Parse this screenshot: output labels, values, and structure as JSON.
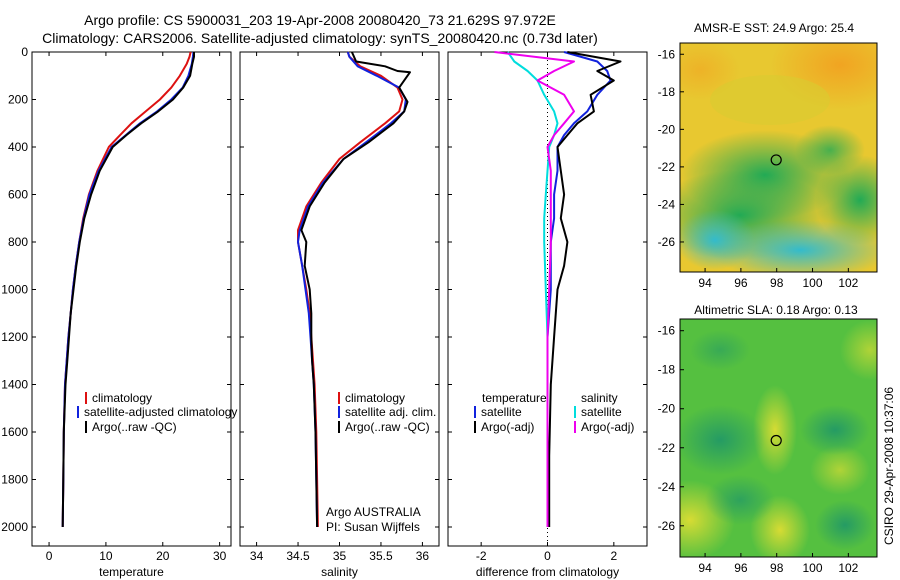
{
  "header": {
    "title_line1": "Argo profile: CS 5900031_203 19-Apr-2008 20080420_73 21.629S 97.972E",
    "title_line2": "Climatology: CARS2006. Satellite-adjusted climatology: synTS_20080420.nc (0.73d later)"
  },
  "side_note": "CSIRO 29-Apr-2008 10:37:06",
  "colors": {
    "climatology": "#dd1111",
    "satellite": "#1122dd",
    "argo": "#000000",
    "cyan": "#00dddd",
    "magenta": "#ee00ee",
    "marker": "#000000"
  },
  "chart_data": [
    {
      "type": "line",
      "id": "temperature",
      "xlabel": "temperature",
      "ylabel": "",
      "xlim": [
        -3,
        32
      ],
      "ylim": [
        2080,
        0
      ],
      "xticks": [
        0,
        10,
        20,
        30
      ],
      "yticks": [
        0,
        200,
        400,
        600,
        800,
        1000,
        1200,
        1400,
        1600,
        1800,
        2000
      ],
      "legend": [
        "climatology",
        "satellite-adjusted climatology",
        "Argo(..raw -QC)"
      ],
      "legend_placement": "lower-left",
      "series": [
        {
          "name": "climatology",
          "color": "climatology",
          "x": [
            24.9,
            24.7,
            24.2,
            23.0,
            21.5,
            19.5,
            17.0,
            14.5,
            12.5,
            10.5,
            8.5,
            7.0,
            6.0,
            5.3,
            4.7,
            4.2,
            3.8,
            3.4,
            3.1,
            2.8,
            2.6,
            2.5,
            2.4
          ],
          "y": [
            0,
            20,
            50,
            100,
            150,
            200,
            250,
            300,
            350,
            400,
            500,
            600,
            700,
            800,
            900,
            1000,
            1100,
            1200,
            1300,
            1400,
            1600,
            1800,
            2000
          ]
        },
        {
          "name": "satellite-adjusted climatology",
          "color": "satellite",
          "x": [
            25.4,
            25.3,
            25.1,
            24.5,
            23.5,
            21.5,
            19.0,
            16.0,
            13.5,
            11.0,
            8.7,
            7.1,
            6.1,
            5.3,
            4.7,
            4.2,
            3.8,
            3.4,
            3.1,
            2.8,
            2.6,
            2.5,
            2.4
          ],
          "y": [
            0,
            20,
            50,
            100,
            150,
            200,
            250,
            300,
            350,
            400,
            500,
            600,
            700,
            800,
            900,
            1000,
            1100,
            1200,
            1300,
            1400,
            1600,
            1800,
            2000
          ]
        },
        {
          "name": "Argo(..raw -QC)",
          "color": "argo",
          "x": [
            25.5,
            25.5,
            25.2,
            24.8,
            23.6,
            21.8,
            19.2,
            16.2,
            13.6,
            11.2,
            8.9,
            7.4,
            6.2,
            5.4,
            4.8,
            4.3,
            3.8,
            3.5,
            3.2,
            2.9,
            2.6,
            2.5,
            2.4
          ],
          "y": [
            0,
            20,
            50,
            100,
            150,
            200,
            250,
            300,
            350,
            400,
            500,
            600,
            700,
            800,
            900,
            1000,
            1100,
            1200,
            1300,
            1400,
            1600,
            1800,
            2000
          ]
        }
      ]
    },
    {
      "type": "line",
      "id": "salinity",
      "xlabel": "salinity",
      "ylabel": "",
      "xlim": [
        33.8,
        36.2
      ],
      "ylim": [
        2080,
        0
      ],
      "xticks": [
        34,
        34.5,
        35,
        35.5,
        36
      ],
      "yticks": [
        0,
        200,
        400,
        600,
        800,
        1000,
        1200,
        1400,
        1600,
        1800,
        2000
      ],
      "legend": [
        "climatology",
        "satellite adj. clim.",
        "Argo(..raw -QC)"
      ],
      "legend_placement": "lower-right",
      "annotations": [
        "Argo AUSTRALIA",
        "PI: Susan Wijffels"
      ],
      "series": [
        {
          "name": "climatology",
          "color": "climatology",
          "x": [
            35.1,
            35.12,
            35.25,
            35.5,
            35.7,
            35.76,
            35.72,
            35.55,
            35.25,
            35.0,
            34.78,
            34.6,
            34.5,
            34.5,
            34.55,
            34.6,
            34.64,
            34.66,
            34.68,
            34.7,
            34.72,
            34.73,
            34.74
          ],
          "y": [
            0,
            20,
            60,
            100,
            150,
            200,
            250,
            300,
            380,
            450,
            550,
            650,
            750,
            800,
            900,
            1000,
            1100,
            1200,
            1300,
            1400,
            1600,
            1800,
            2000
          ]
        },
        {
          "name": "satellite adj. clim.",
          "color": "satellite",
          "x": [
            35.1,
            35.12,
            35.22,
            35.45,
            35.72,
            35.8,
            35.78,
            35.62,
            35.32,
            35.05,
            34.8,
            34.62,
            34.52,
            34.5,
            34.55,
            34.59,
            34.63,
            34.65,
            34.67,
            34.69,
            34.71,
            34.72,
            34.73
          ],
          "y": [
            0,
            20,
            60,
            100,
            150,
            200,
            250,
            300,
            380,
            450,
            550,
            650,
            750,
            800,
            900,
            1000,
            1100,
            1200,
            1300,
            1400,
            1600,
            1800,
            2000
          ]
        },
        {
          "name": "Argo(..raw -QC)",
          "color": "argo",
          "x": [
            35.15,
            35.2,
            35.55,
            35.7,
            35.85,
            35.72,
            35.82,
            35.78,
            35.65,
            35.35,
            35.05,
            34.82,
            34.64,
            34.54,
            34.6,
            34.58,
            34.64,
            34.66,
            34.66,
            34.67,
            34.69,
            34.71,
            34.72,
            34.73
          ],
          "y": [
            0,
            40,
            60,
            80,
            85,
            150,
            210,
            250,
            300,
            380,
            450,
            550,
            650,
            750,
            800,
            900,
            1000,
            1100,
            1200,
            1300,
            1400,
            1600,
            1800,
            2000
          ]
        }
      ]
    },
    {
      "type": "line",
      "id": "difference",
      "xlabel": "difference from climatology",
      "ylabel": "",
      "xlim": [
        -3,
        3
      ],
      "ylim": [
        2080,
        0
      ],
      "xticks": [
        -2,
        0,
        2
      ],
      "yticks": [
        0,
        200,
        400,
        600,
        800,
        1000,
        1200,
        1400,
        1600,
        1800,
        2000
      ],
      "legend_groups": [
        {
          "heading": "temperature",
          "entries": [
            "satellite",
            "Argo(-adj)"
          ]
        },
        {
          "heading": "salinity",
          "entries": [
            "satellite",
            "Argo(-adj)"
          ]
        }
      ],
      "legend_placement": "lower-center",
      "series": [
        {
          "name": "temperature satellite",
          "color": "satellite",
          "x": [
            0.5,
            1.5,
            1.8,
            1.9,
            1.5,
            1.2,
            0.8,
            0.5,
            0.3,
            0.3,
            0.2,
            0.2,
            0.1,
            0.1,
            0.1,
            0.0,
            0.0,
            0.0,
            0.0
          ],
          "y": [
            0,
            40,
            80,
            120,
            180,
            250,
            300,
            350,
            400,
            500,
            600,
            700,
            800,
            900,
            1000,
            1200,
            1400,
            1700,
            2000
          ]
        },
        {
          "name": "temperature Argo(-adj)",
          "color": "argo",
          "x": [
            0.6,
            2.2,
            1.5,
            2.0,
            1.3,
            1.4,
            0.9,
            0.6,
            0.3,
            0.4,
            0.5,
            0.4,
            0.6,
            0.5,
            0.3,
            0.2,
            0.1,
            0.05,
            0.05
          ],
          "y": [
            0,
            40,
            80,
            120,
            180,
            250,
            300,
            350,
            400,
            500,
            600,
            700,
            800,
            900,
            1000,
            1200,
            1400,
            1700,
            2000
          ]
        },
        {
          "name": "salinity satellite",
          "color": "cyan",
          "x": [
            -1.2,
            -1.0,
            -0.6,
            -0.3,
            -0.1,
            0.2,
            0.3,
            0.2,
            0.05,
            0.0,
            -0.05,
            -0.1,
            -0.1,
            -0.05,
            0.0,
            0.0,
            0.0
          ],
          "y": [
            0,
            40,
            80,
            120,
            180,
            250,
            300,
            350,
            400,
            500,
            600,
            700,
            800,
            1000,
            1200,
            1600,
            2000
          ]
        },
        {
          "name": "salinity Argo(-adj)",
          "color": "magenta",
          "x": [
            -1.6,
            0.8,
            0.2,
            -0.3,
            0.5,
            0.8,
            0.5,
            0.2,
            0.0,
            0.1,
            0.1,
            0.1,
            0.05,
            0.0,
            0.0,
            0.0
          ],
          "y": [
            0,
            40,
            80,
            120,
            180,
            250,
            300,
            350,
            400,
            500,
            600,
            800,
            1000,
            1200,
            1600,
            2000
          ]
        }
      ]
    },
    {
      "type": "heatmap",
      "id": "sst-map",
      "title": "AMSR-E SST: 24.9 Argo: 25.4",
      "xlim": [
        92.6,
        103.6
      ],
      "ylim": [
        -27.6,
        -15.4
      ],
      "xticks": [
        94,
        96,
        98,
        100,
        102
      ],
      "yticks": [
        -16,
        -18,
        -20,
        -22,
        -24,
        -26
      ],
      "marker": {
        "lon": 97.972,
        "lat": -21.629
      }
    },
    {
      "type": "heatmap",
      "id": "sla-map",
      "title": "Altimetric SLA: 0.18 Argo: 0.13",
      "xlim": [
        92.6,
        103.6
      ],
      "ylim": [
        -27.6,
        -15.4
      ],
      "xticks": [
        94,
        96,
        98,
        100,
        102
      ],
      "yticks": [
        -16,
        -18,
        -20,
        -22,
        -24,
        -26
      ],
      "marker": {
        "lon": 97.972,
        "lat": -21.629
      }
    }
  ]
}
